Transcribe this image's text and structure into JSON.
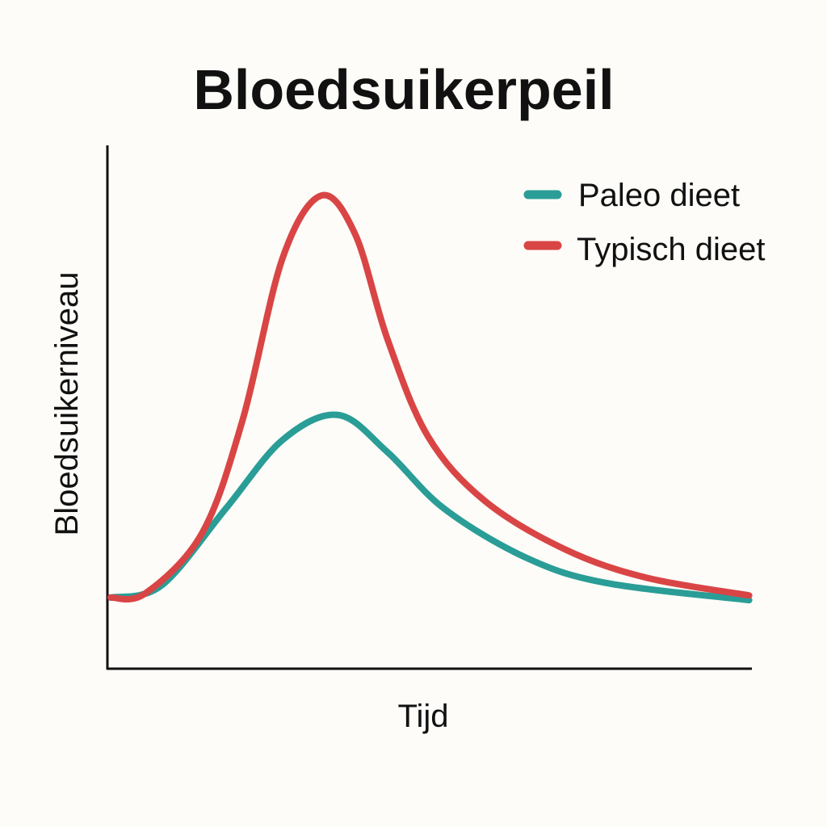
{
  "chart_data": {
    "type": "line",
    "title": "Bloedsuikerpeil",
    "xlabel": "Tijd",
    "ylabel": "Bloedsuikerniveau",
    "xlim": [
      0,
      100
    ],
    "ylim": [
      0,
      100
    ],
    "grid": false,
    "ticks": false,
    "legend_placement": "top-right",
    "series": [
      {
        "name": "Paleo dieet",
        "color": "#2a9d97",
        "x": [
          0.5,
          8.4,
          18.4,
          27.2,
          35.8,
          43.5,
          52.3,
          64.9,
          77.4,
          99.7
        ],
        "y": [
          13.6,
          15.9,
          30.6,
          43.7,
          48.5,
          41.4,
          30.6,
          21.3,
          16.4,
          13.1
        ]
      },
      {
        "name": "Typisch dieet",
        "color": "#d94545",
        "x": [
          0.5,
          5.9,
          14.7,
          21,
          27.2,
          33.2,
          38.5,
          43.5,
          49.8,
          58.6,
          71.1,
          83.7,
          99.7
        ],
        "y": [
          13.6,
          14.4,
          25.9,
          47.5,
          78.4,
          90.4,
          83,
          63,
          44.4,
          32.1,
          22.8,
          17.4,
          14
        ]
      }
    ]
  }
}
